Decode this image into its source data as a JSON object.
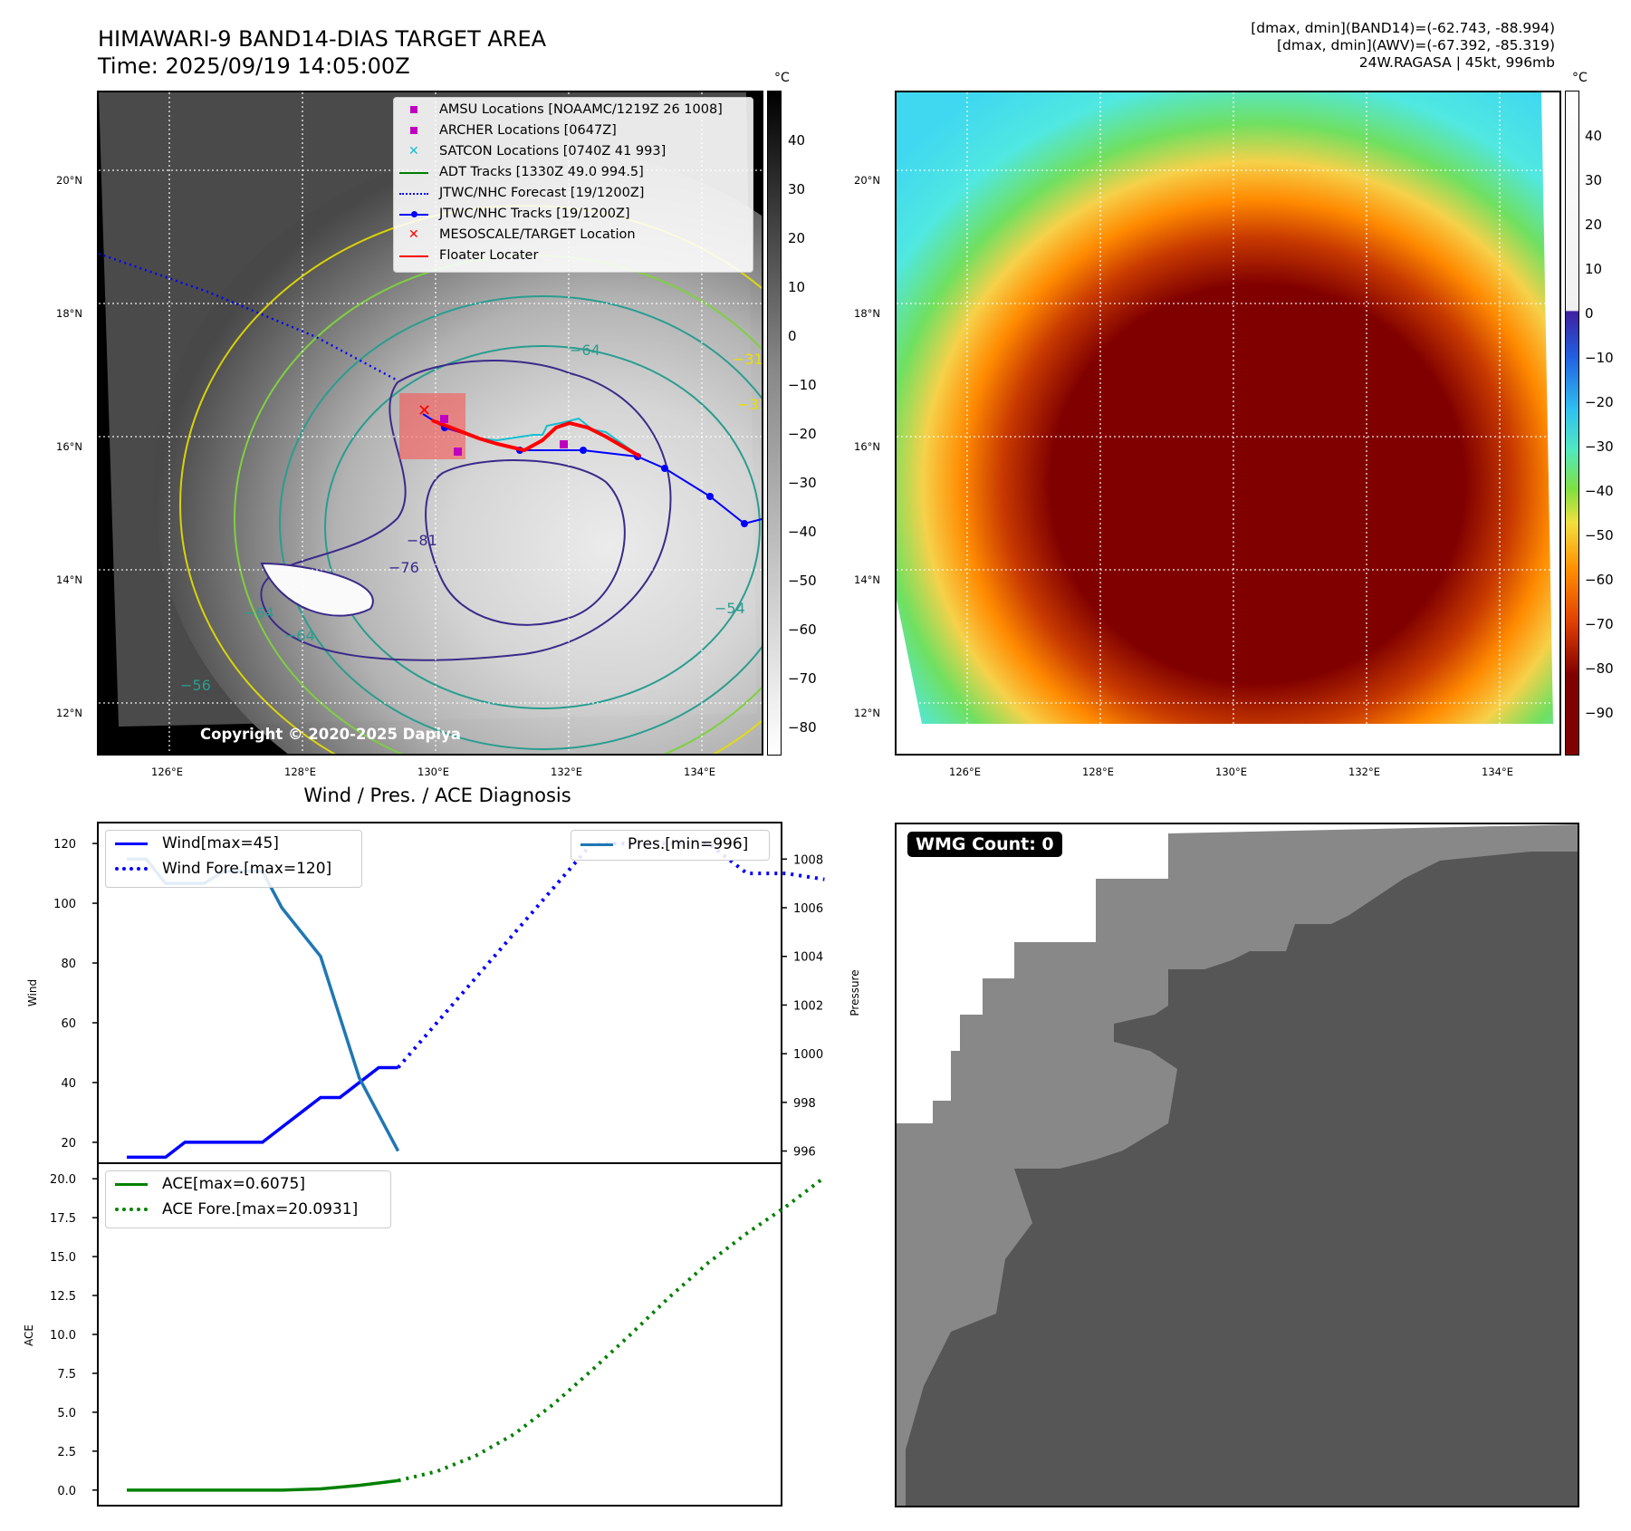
{
  "header": {
    "title_line1": "HIMAWARI-9 BAND14-DIAS TARGET AREA",
    "title_line2": "Time: 2025/09/19 14:05:00Z",
    "right_line1": "[dmax, dmin](BAND14)=(-62.743, -88.994)",
    "right_line2": "[dmax, dmin](AWV)=(-67.392, -85.319)",
    "right_line3": "24W.RAGASA | 45kt, 996mb"
  },
  "map_left": {
    "copyright": "Copyright © 2020-2025 Dapiya",
    "colorbar_unit": "°C",
    "colorbar_ticks": [
      "40",
      "30",
      "20",
      "10",
      "0",
      "−10",
      "−20",
      "−30",
      "−40",
      "−50",
      "−60",
      "−70",
      "−80"
    ],
    "lat_labels": [
      "20°N",
      "18°N",
      "16°N",
      "14°N",
      "12°N"
    ],
    "lon_labels": [
      "126°E",
      "128°E",
      "130°E",
      "132°E",
      "134°E"
    ],
    "contour_labels": [
      "−64",
      "−81",
      "−76",
      "−64",
      "−64",
      "−54",
      "−31",
      "−31",
      "−56"
    ],
    "legend": [
      {
        "label": "AMSU Locations [NOAAMC/1219Z 26 1008]",
        "marker": "square",
        "color": "#c000c0"
      },
      {
        "label": "ARCHER Locations [0647Z]",
        "marker": "square",
        "color": "#c000c0"
      },
      {
        "label": "SATCON Locations [0740Z 41 993]",
        "marker": "x",
        "color": "#17becf"
      },
      {
        "label": "ADT Tracks [1330Z 49.0 994.5]",
        "marker": "line",
        "color": "#008000"
      },
      {
        "label": "JTWC/NHC Forecast [19/1200Z]",
        "marker": "dotted",
        "color": "#0000ff"
      },
      {
        "label": "JTWC/NHC Tracks [19/1200Z]",
        "marker": "line-dot",
        "color": "#0000ff"
      },
      {
        "label": "MESOSCALE/TARGET Location",
        "marker": "x",
        "color": "#ff0000"
      },
      {
        "label": "Floater Locater",
        "marker": "line",
        "color": "#ff0000"
      }
    ]
  },
  "map_right": {
    "colorbar_unit": "°C",
    "colorbar_ticks": [
      "40",
      "30",
      "20",
      "10",
      "0",
      "−10",
      "−20",
      "−30",
      "−40",
      "−50",
      "−60",
      "−70",
      "−80",
      "−90"
    ],
    "lat_labels": [
      "20°N",
      "18°N",
      "16°N",
      "14°N",
      "12°N"
    ],
    "lon_labels": [
      "126°E",
      "128°E",
      "130°E",
      "132°E",
      "134°E"
    ]
  },
  "wmg": {
    "label": "WMG Count: 0"
  },
  "chart_data": [
    {
      "type": "line",
      "title": "Wind / Pres. / ACE Diagnosis",
      "ylabel": "Wind",
      "ylim": [
        13,
        127
      ],
      "y2label": "Pressure",
      "y2lim": [
        995.5,
        1009.5
      ],
      "yticks": [
        "20",
        "40",
        "60",
        "80",
        "100",
        "120"
      ],
      "y2ticks": [
        "996",
        "998",
        "1000",
        "1002",
        "1004",
        "1006",
        "1008"
      ],
      "series": [
        {
          "name": "Wind[max=45]",
          "axis": "left",
          "style": "solid",
          "color": "#0000ff",
          "x": [
            0,
            1,
            2,
            3,
            4,
            5,
            6,
            7,
            8,
            9,
            10,
            11,
            12,
            13,
            14
          ],
          "values": [
            15,
            15,
            15,
            20,
            20,
            20,
            20,
            20,
            25,
            30,
            35,
            35,
            40,
            45,
            45
          ]
        },
        {
          "name": "Wind Fore.[max=120]",
          "axis": "left",
          "style": "dotted",
          "color": "#0000ff",
          "x": [
            14,
            16,
            18,
            20,
            22,
            24,
            26,
            28,
            30,
            32,
            34,
            36
          ],
          "values": [
            45,
            60,
            75,
            90,
            105,
            120,
            120,
            120,
            120,
            110,
            110,
            108
          ]
        },
        {
          "name": "Pres.[min=996]",
          "axis": "right",
          "style": "solid",
          "color": "#1f77b4",
          "x": [
            0,
            1,
            2,
            3,
            4,
            5,
            6,
            7,
            8,
            9,
            10,
            11,
            12,
            13,
            14
          ],
          "values": [
            1008,
            1008,
            1007,
            1007,
            1007,
            1007.5,
            1007.5,
            1007.5,
            1006,
            1005,
            1004,
            1001.5,
            999,
            997.5,
            996
          ]
        }
      ]
    },
    {
      "type": "line",
      "ylabel": "ACE",
      "ylim": [
        -1,
        21
      ],
      "yticks": [
        "0.0",
        "2.5",
        "5.0",
        "7.5",
        "10.0",
        "12.5",
        "15.0",
        "17.5",
        "20.0"
      ],
      "series": [
        {
          "name": "ACE[max=0.6075]",
          "style": "solid",
          "color": "#008000",
          "x": [
            0,
            2,
            4,
            6,
            8,
            10,
            12,
            14
          ],
          "values": [
            0,
            0,
            0,
            0,
            0,
            0.08,
            0.3,
            0.6075
          ]
        },
        {
          "name": "ACE Fore.[max=20.0931]",
          "style": "dotted",
          "color": "#008000",
          "x": [
            14,
            16,
            18,
            20,
            22,
            24,
            26,
            28,
            30,
            32,
            34,
            36
          ],
          "values": [
            0.6075,
            1.2,
            2.2,
            3.6,
            5.5,
            7.7,
            10.0,
            12.4,
            14.6,
            16.5,
            18.2,
            20.0931
          ]
        }
      ]
    }
  ]
}
